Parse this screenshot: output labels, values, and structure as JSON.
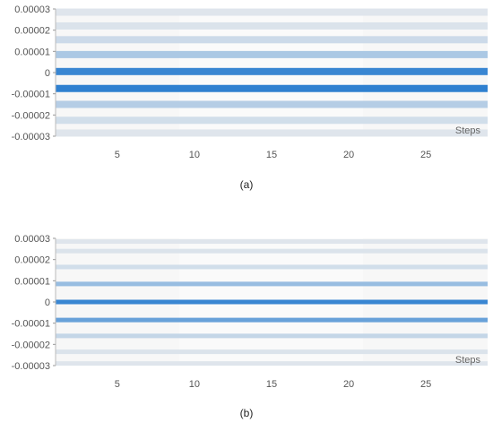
{
  "chart_data": [
    {
      "type": "heatmap",
      "caption": "(a)",
      "xlabel": "Steps",
      "ylabel": "",
      "xlim": [
        1,
        29
      ],
      "ylim": [
        -3e-05,
        3e-05
      ],
      "x_ticks": [
        "5",
        "10",
        "15",
        "20",
        "25"
      ],
      "y_ticks": [
        "0.00003",
        "0.00002",
        "0.00001",
        "0",
        "-0.00001",
        "-0.00002",
        "-0.00003"
      ],
      "bands": [
        {
          "y": 2.85e-05,
          "intensity": 0.08
        },
        {
          "y": 2.2e-05,
          "intensity": 0.1
        },
        {
          "y": 1.55e-05,
          "intensity": 0.18
        },
        {
          "y": 8.5e-06,
          "intensity": 0.35
        },
        {
          "y": 5e-07,
          "intensity": 0.95
        },
        {
          "y": -7.5e-06,
          "intensity": 1.0
        },
        {
          "y": -1.5e-05,
          "intensity": 0.3
        },
        {
          "y": -2.25e-05,
          "intensity": 0.15
        },
        {
          "y": -2.85e-05,
          "intensity": 0.08
        }
      ],
      "colors": {
        "low": "#eeeeee",
        "high": "#2f80d0"
      }
    },
    {
      "type": "heatmap",
      "caption": "(b)",
      "xlabel": "Steps",
      "ylabel": "",
      "xlim": [
        1,
        29
      ],
      "ylim": [
        -3e-05,
        3e-05
      ],
      "x_ticks": [
        "5",
        "10",
        "15",
        "20",
        "25"
      ],
      "y_ticks": [
        "0.00003",
        "0.00002",
        "0.00001",
        "0",
        "-0.00001",
        "-0.00002",
        "-0.00003"
      ],
      "bands": [
        {
          "y": 2.85e-05,
          "intensity": 0.08
        },
        {
          "y": 2.4e-05,
          "intensity": 0.1
        },
        {
          "y": 1.65e-05,
          "intensity": 0.15
        },
        {
          "y": 8.5e-06,
          "intensity": 0.45
        },
        {
          "y": 0.0,
          "intensity": 0.95
        },
        {
          "y": -8.5e-06,
          "intensity": 0.7
        },
        {
          "y": -1.6e-05,
          "intensity": 0.22
        },
        {
          "y": -2.35e-05,
          "intensity": 0.1
        },
        {
          "y": -2.9e-05,
          "intensity": 0.08
        }
      ],
      "colors": {
        "low": "#eeeeee",
        "high": "#2f80d0"
      }
    }
  ]
}
